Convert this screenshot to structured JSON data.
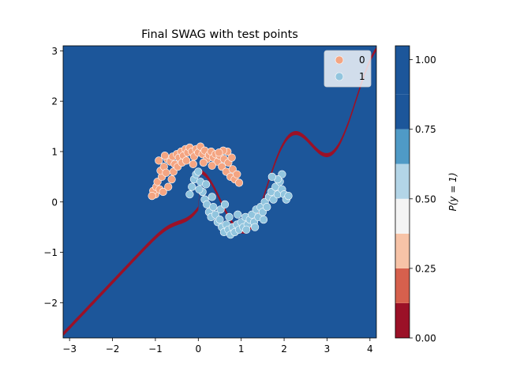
{
  "chart_data": {
    "type": "scatter",
    "title": "Final SWAG with test points",
    "xlabel": "",
    "ylabel": "",
    "xlim": [
      -3.15,
      4.15
    ],
    "ylim": [
      -2.7,
      3.1
    ],
    "x_ticks": [
      -3,
      -2,
      -1,
      0,
      1,
      2,
      3,
      4
    ],
    "x_tick_labels": [
      "−3",
      "−2",
      "−1",
      "0",
      "1",
      "2",
      "3",
      "4"
    ],
    "y_ticks": [
      -2,
      -1,
      0,
      1,
      2,
      3
    ],
    "y_tick_labels": [
      "−2",
      "−1",
      "0",
      "1",
      "2",
      "3"
    ],
    "legend": {
      "placement": "top-right",
      "entries": [
        {
          "label": "0",
          "color": "#f4a582"
        },
        {
          "label": "1",
          "color": "#92c5de"
        }
      ]
    },
    "colorbar": {
      "label": "P(y = 1)",
      "ticks": [
        0.0,
        0.25,
        0.5,
        0.75,
        1.0
      ],
      "tick_labels": [
        "0.00",
        "0.25",
        "0.50",
        "0.75",
        "1.00"
      ],
      "levels": [
        0.0,
        0.125,
        0.25,
        0.375,
        0.5,
        0.625,
        0.75,
        0.875,
        1.05
      ],
      "colors": [
        "#9b1127",
        "#d6604d",
        "#f7c3a7",
        "#f4f4f4",
        "#b3d5e7",
        "#4f9ac6",
        "#1c569a",
        "#1c569a"
      ]
    },
    "series": [
      {
        "name": "0",
        "color": "#f4a582",
        "points": [
          [
            -1.0,
            0.15
          ],
          [
            -1.05,
            0.22
          ],
          [
            -0.98,
            0.3
          ],
          [
            -0.9,
            0.25
          ],
          [
            -0.95,
            0.4
          ],
          [
            -0.85,
            0.5
          ],
          [
            -0.88,
            0.62
          ],
          [
            -0.8,
            0.7
          ],
          [
            -0.75,
            0.58
          ],
          [
            -0.72,
            0.85
          ],
          [
            -0.65,
            0.8
          ],
          [
            -0.6,
            0.9
          ],
          [
            -0.55,
            0.75
          ],
          [
            -0.5,
            0.95
          ],
          [
            -0.45,
            0.88
          ],
          [
            -0.4,
            1.0
          ],
          [
            -0.35,
            0.92
          ],
          [
            -0.3,
            1.05
          ],
          [
            -0.25,
            0.98
          ],
          [
            -0.2,
            1.08
          ],
          [
            -0.15,
            1.0
          ],
          [
            -0.1,
            0.9
          ],
          [
            -0.05,
            1.05
          ],
          [
            0.0,
            0.98
          ],
          [
            0.05,
            1.1
          ],
          [
            0.1,
            0.95
          ],
          [
            0.15,
            1.02
          ],
          [
            0.2,
            0.85
          ],
          [
            0.25,
            0.93
          ],
          [
            0.3,
            1.0
          ],
          [
            0.35,
            0.88
          ],
          [
            0.4,
            0.95
          ],
          [
            0.45,
            0.8
          ],
          [
            0.5,
            0.92
          ],
          [
            0.55,
            0.7
          ],
          [
            0.6,
            0.85
          ],
          [
            0.65,
            0.6
          ],
          [
            0.7,
            0.78
          ],
          [
            0.75,
            0.5
          ],
          [
            0.8,
            0.65
          ],
          [
            0.85,
            0.45
          ],
          [
            0.9,
            0.55
          ],
          [
            0.78,
            0.88
          ],
          [
            0.68,
            1.0
          ],
          [
            0.58,
            1.02
          ],
          [
            0.48,
            0.98
          ],
          [
            -0.82,
            0.2
          ],
          [
            -0.7,
            0.3
          ],
          [
            -0.62,
            0.45
          ],
          [
            -0.58,
            0.6
          ],
          [
            -0.48,
            0.7
          ],
          [
            -0.38,
            0.78
          ],
          [
            -0.28,
            0.82
          ],
          [
            -0.92,
            0.82
          ],
          [
            -0.78,
            0.92
          ],
          [
            0.95,
            0.38
          ],
          [
            -1.08,
            0.12
          ],
          [
            0.12,
            0.78
          ],
          [
            0.32,
            0.72
          ],
          [
            -0.12,
            0.75
          ]
        ]
      },
      {
        "name": "1",
        "color": "#92c5de",
        "points": [
          [
            -0.15,
            0.3
          ],
          [
            -0.1,
            0.45
          ],
          [
            -0.05,
            0.55
          ],
          [
            0.0,
            0.6
          ],
          [
            0.05,
            0.4
          ],
          [
            0.1,
            0.2
          ],
          [
            0.15,
            0.05
          ],
          [
            0.2,
            -0.05
          ],
          [
            0.25,
            -0.2
          ],
          [
            0.3,
            -0.3
          ],
          [
            0.35,
            -0.1
          ],
          [
            0.4,
            -0.25
          ],
          [
            0.45,
            -0.4
          ],
          [
            0.5,
            -0.35
          ],
          [
            0.55,
            -0.5
          ],
          [
            0.6,
            -0.6
          ],
          [
            0.65,
            -0.45
          ],
          [
            0.7,
            -0.55
          ],
          [
            0.75,
            -0.65
          ],
          [
            0.8,
            -0.5
          ],
          [
            0.85,
            -0.6
          ],
          [
            0.9,
            -0.45
          ],
          [
            0.95,
            -0.55
          ],
          [
            1.0,
            -0.4
          ],
          [
            1.05,
            -0.5
          ],
          [
            1.1,
            -0.3
          ],
          [
            1.15,
            -0.45
          ],
          [
            1.2,
            -0.35
          ],
          [
            1.25,
            -0.25
          ],
          [
            1.3,
            -0.4
          ],
          [
            1.35,
            -0.15
          ],
          [
            1.4,
            -0.3
          ],
          [
            1.45,
            -0.1
          ],
          [
            1.5,
            -0.2
          ],
          [
            1.55,
            0.0
          ],
          [
            1.6,
            -0.1
          ],
          [
            1.65,
            0.1
          ],
          [
            1.7,
            0.2
          ],
          [
            1.75,
            0.05
          ],
          [
            1.8,
            0.3
          ],
          [
            1.85,
            0.15
          ],
          [
            1.9,
            0.4
          ],
          [
            1.95,
            0.25
          ],
          [
            2.0,
            0.15
          ],
          [
            2.05,
            0.05
          ],
          [
            2.1,
            0.12
          ],
          [
            1.95,
            0.55
          ],
          [
            1.85,
            0.45
          ],
          [
            1.72,
            0.5
          ],
          [
            -0.2,
            0.15
          ],
          [
            0.02,
            0.25
          ],
          [
            0.18,
            0.35
          ],
          [
            0.32,
            0.1
          ],
          [
            0.52,
            -0.15
          ],
          [
            0.72,
            -0.3
          ],
          [
            0.92,
            -0.25
          ],
          [
            1.12,
            -0.55
          ],
          [
            1.32,
            -0.5
          ],
          [
            1.52,
            -0.35
          ],
          [
            0.62,
            -0.05
          ]
        ]
      }
    ]
  }
}
